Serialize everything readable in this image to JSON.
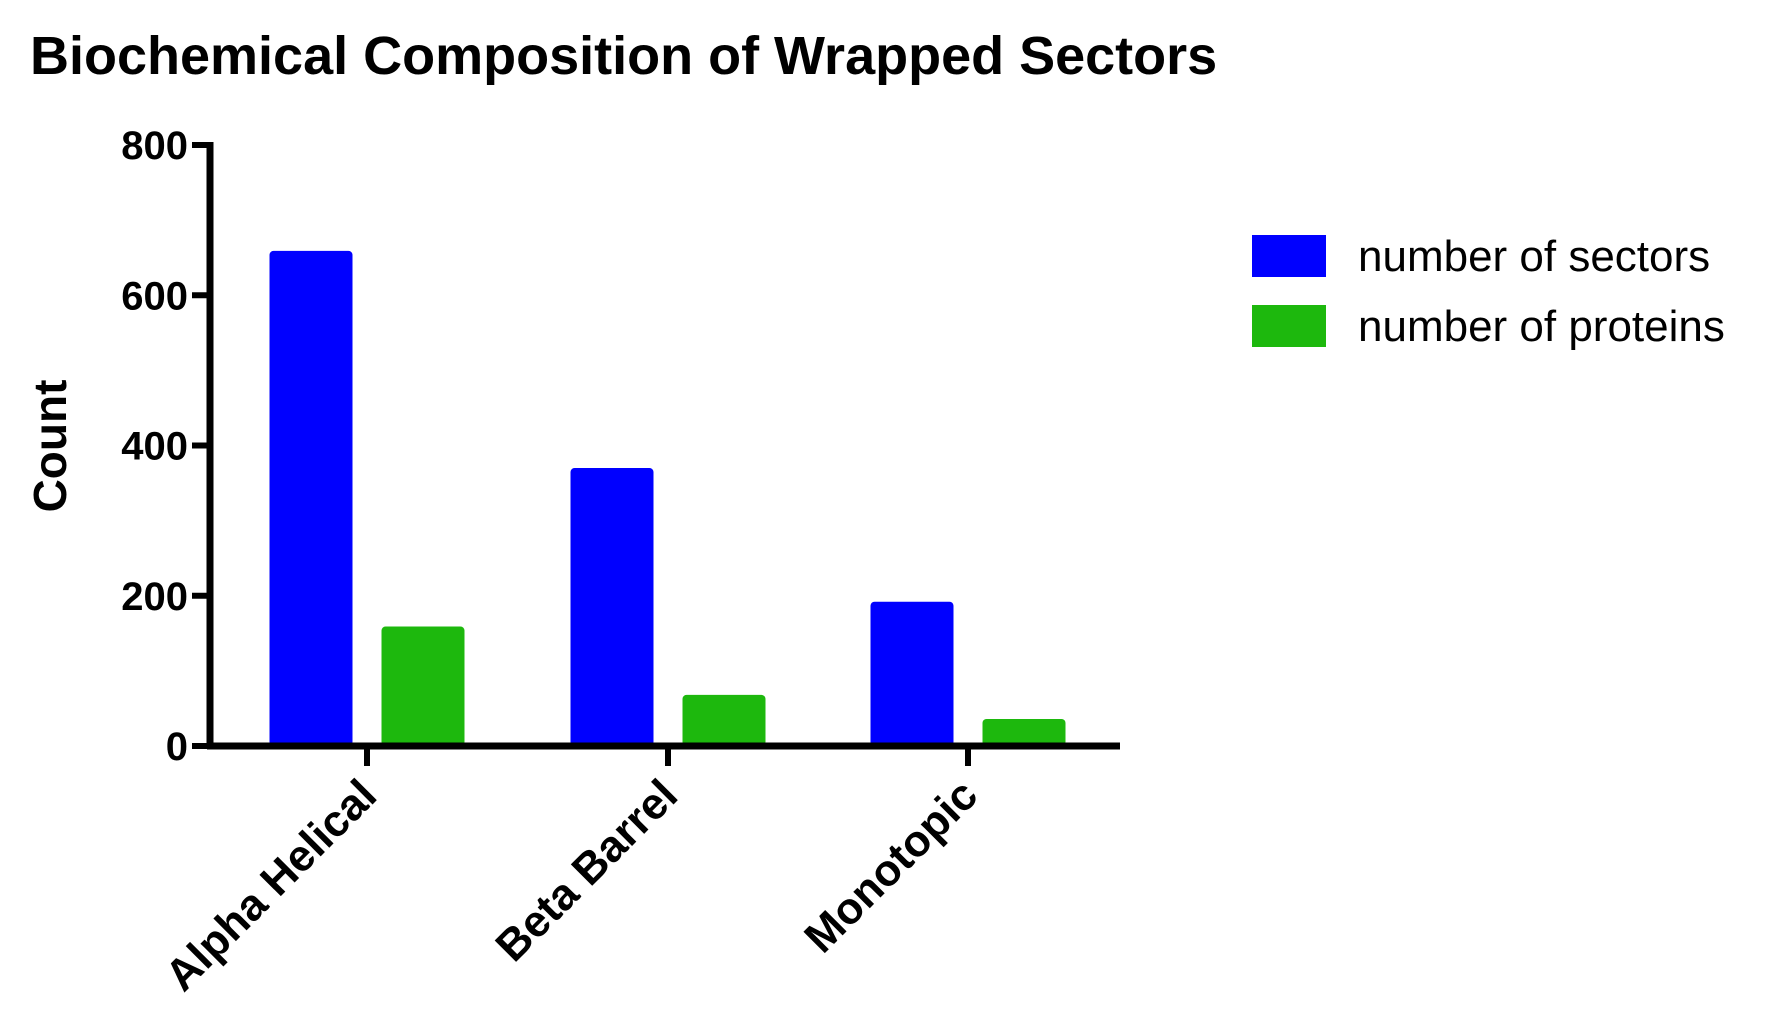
{
  "chart_data": {
    "type": "bar",
    "title": "Biochemical Composition of Wrapped Sectors",
    "xlabel": "",
    "ylabel": "Count",
    "ylim": [
      0,
      800
    ],
    "yticks": [
      "0",
      "200",
      "400",
      "600",
      "800"
    ],
    "categories": [
      "Alpha Helical",
      "Beta Barrel",
      "Monotopic"
    ],
    "series": [
      {
        "name": "number of sectors",
        "color": "#0000ff",
        "values": [
          659,
          370,
          192
        ]
      },
      {
        "name": "number of proteins",
        "color": "#1db80d",
        "values": [
          159,
          68,
          36
        ]
      }
    ],
    "legend_position": "right",
    "grid": false
  }
}
